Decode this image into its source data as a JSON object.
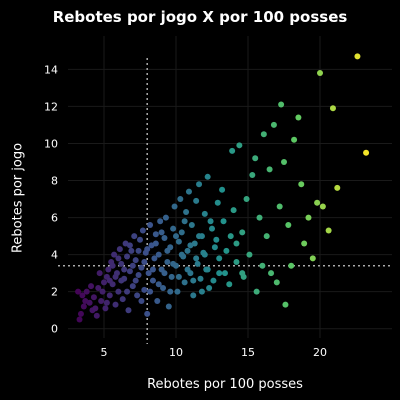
{
  "chart_data": {
    "type": "scatter",
    "title": "Rebotes por jogo X por 100 posses",
    "xlabel": "Rebotes por 100 posses",
    "ylabel": "Rebotes por jogo",
    "xlim": [
      2.5,
      25
    ],
    "ylim": [
      -0.5,
      15.8
    ],
    "xticks": [
      5,
      10,
      15,
      20
    ],
    "yticks": [
      0,
      2,
      4,
      6,
      8,
      10,
      12,
      14
    ],
    "ref_x": 8.0,
    "ref_y": 3.4,
    "colorscale": "viridis",
    "points": [
      [
        3.3,
        0.5
      ],
      [
        3.4,
        0.8
      ],
      [
        3.6,
        1.2
      ],
      [
        3.5,
        1.8
      ],
      [
        3.8,
        2.0
      ],
      [
        4.0,
        1.4
      ],
      [
        4.2,
        1.0
      ],
      [
        4.5,
        0.7
      ],
      [
        4.3,
        1.7
      ],
      [
        4.6,
        2.2
      ],
      [
        4.8,
        1.5
      ],
      [
        5.0,
        2.5
      ],
      [
        5.1,
        1.1
      ],
      [
        5.2,
        2.8
      ],
      [
        5.3,
        3.2
      ],
      [
        5.4,
        1.8
      ],
      [
        5.5,
        3.6
      ],
      [
        5.6,
        2.4
      ],
      [
        5.7,
        4.0
      ],
      [
        5.8,
        1.3
      ],
      [
        5.9,
        3.0
      ],
      [
        6.0,
        2.0
      ],
      [
        6.1,
        4.3
      ],
      [
        6.2,
        3.5
      ],
      [
        6.3,
        1.6
      ],
      [
        6.4,
        2.7
      ],
      [
        6.5,
        4.6
      ],
      [
        6.6,
        3.9
      ],
      [
        6.7,
        1.0
      ],
      [
        6.8,
        3.1
      ],
      [
        6.9,
        4.2
      ],
      [
        7.0,
        2.3
      ],
      [
        7.1,
        5.0
      ],
      [
        7.2,
        3.7
      ],
      [
        7.3,
        1.8
      ],
      [
        7.4,
        2.9
      ],
      [
        7.5,
        4.8
      ],
      [
        7.6,
        3.3
      ],
      [
        7.7,
        5.3
      ],
      [
        7.8,
        2.1
      ],
      [
        7.9,
        4.1
      ],
      [
        8.0,
        0.8
      ],
      [
        8.1,
        3.0
      ],
      [
        8.2,
        5.6
      ],
      [
        8.3,
        4.5
      ],
      [
        8.4,
        2.6
      ],
      [
        8.5,
        3.8
      ],
      [
        8.6,
        5.1
      ],
      [
        8.7,
        1.5
      ],
      [
        8.8,
        4.0
      ],
      [
        8.9,
        5.8
      ],
      [
        9.0,
        3.2
      ],
      [
        9.1,
        2.2
      ],
      [
        9.2,
        4.9
      ],
      [
        9.3,
        6.0
      ],
      [
        9.4,
        3.6
      ],
      [
        9.5,
        1.2
      ],
      [
        9.6,
        4.4
      ],
      [
        9.7,
        2.8
      ],
      [
        9.8,
        5.4
      ],
      [
        9.9,
        6.6
      ],
      [
        10.0,
        3.4
      ],
      [
        10.1,
        2.0
      ],
      [
        10.2,
        4.7
      ],
      [
        10.3,
        7.0
      ],
      [
        10.4,
        5.2
      ],
      [
        10.5,
        3.9
      ],
      [
        10.6,
        2.5
      ],
      [
        10.7,
        6.3
      ],
      [
        10.8,
        4.2
      ],
      [
        10.9,
        7.4
      ],
      [
        11.0,
        3.0
      ],
      [
        11.1,
        5.6
      ],
      [
        11.2,
        1.8
      ],
      [
        11.3,
        4.6
      ],
      [
        11.4,
        6.9
      ],
      [
        11.5,
        3.5
      ],
      [
        11.6,
        7.8
      ],
      [
        11.7,
        2.7
      ],
      [
        11.8,
        5.0
      ],
      [
        11.9,
        4.1
      ],
      [
        12.0,
        6.2
      ],
      [
        12.1,
        3.2
      ],
      [
        12.2,
        8.2
      ],
      [
        12.3,
        2.2
      ],
      [
        12.5,
        5.4
      ],
      [
        12.7,
        4.4
      ],
      [
        12.9,
        6.8
      ],
      [
        13.0,
        3.0
      ],
      [
        13.2,
        7.5
      ],
      [
        13.3,
        5.8
      ],
      [
        13.5,
        4.2
      ],
      [
        13.7,
        2.4
      ],
      [
        13.9,
        9.6
      ],
      [
        14.0,
        6.4
      ],
      [
        14.2,
        3.6
      ],
      [
        14.4,
        9.9
      ],
      [
        14.6,
        5.2
      ],
      [
        14.7,
        2.8
      ],
      [
        14.9,
        7.0
      ],
      [
        15.1,
        4.0
      ],
      [
        15.3,
        8.3
      ],
      [
        15.5,
        9.2
      ],
      [
        15.6,
        2.0
      ],
      [
        15.8,
        6.0
      ],
      [
        16.0,
        3.4
      ],
      [
        16.1,
        10.5
      ],
      [
        16.3,
        5.0
      ],
      [
        16.5,
        8.6
      ],
      [
        16.6,
        3.0
      ],
      [
        16.8,
        11.0
      ],
      [
        17.0,
        2.5
      ],
      [
        17.2,
        6.6
      ],
      [
        17.3,
        12.1
      ],
      [
        17.5,
        9.0
      ],
      [
        17.6,
        1.3
      ],
      [
        17.8,
        5.6
      ],
      [
        18.0,
        3.4
      ],
      [
        18.2,
        10.2
      ],
      [
        18.5,
        11.4
      ],
      [
        18.7,
        7.8
      ],
      [
        18.9,
        4.6
      ],
      [
        19.2,
        6.0
      ],
      [
        19.5,
        3.8
      ],
      [
        19.8,
        6.8
      ],
      [
        20.0,
        13.8
      ],
      [
        20.2,
        6.6
      ],
      [
        20.6,
        5.3
      ],
      [
        20.9,
        11.9
      ],
      [
        21.2,
        7.6
      ],
      [
        22.6,
        14.7
      ],
      [
        23.2,
        9.5
      ],
      [
        3.2,
        2.0
      ],
      [
        3.7,
        1.5
      ],
      [
        4.1,
        2.3
      ],
      [
        4.4,
        1.1
      ],
      [
        4.7,
        3.0
      ],
      [
        4.9,
        2.0
      ],
      [
        5.2,
        1.4
      ],
      [
        5.4,
        2.6
      ],
      [
        5.6,
        3.4
      ],
      [
        5.8,
        2.8
      ],
      [
        6.0,
        3.8
      ],
      [
        6.2,
        2.6
      ],
      [
        6.4,
        3.2
      ],
      [
        6.6,
        2.0
      ],
      [
        6.8,
        4.5
      ],
      [
        7.0,
        3.4
      ],
      [
        7.2,
        2.6
      ],
      [
        7.4,
        4.2
      ],
      [
        7.6,
        1.5
      ],
      [
        7.8,
        3.6
      ],
      [
        8.0,
        4.3
      ],
      [
        8.2,
        2.0
      ],
      [
        8.4,
        3.2
      ],
      [
        8.6,
        4.6
      ],
      [
        8.8,
        2.4
      ],
      [
        9.0,
        5.2
      ],
      [
        9.2,
        3.0
      ],
      [
        9.4,
        4.2
      ],
      [
        9.6,
        2.0
      ],
      [
        9.8,
        3.5
      ],
      [
        10.0,
        5.0
      ],
      [
        10.2,
        2.8
      ],
      [
        10.4,
        4.0
      ],
      [
        10.6,
        5.8
      ],
      [
        10.8,
        3.2
      ],
      [
        11.0,
        4.5
      ],
      [
        11.2,
        2.6
      ],
      [
        11.4,
        3.8
      ],
      [
        11.6,
        5.0
      ],
      [
        11.8,
        2.0
      ],
      [
        12.0,
        4.0
      ],
      [
        12.2,
        3.2
      ],
      [
        12.4,
        5.8
      ],
      [
        12.6,
        2.6
      ],
      [
        12.8,
        4.8
      ],
      [
        13.0,
        3.8
      ],
      [
        13.4,
        3.0
      ],
      [
        13.8,
        5.0
      ],
      [
        14.2,
        4.6
      ],
      [
        14.6,
        3.0
      ]
    ]
  }
}
